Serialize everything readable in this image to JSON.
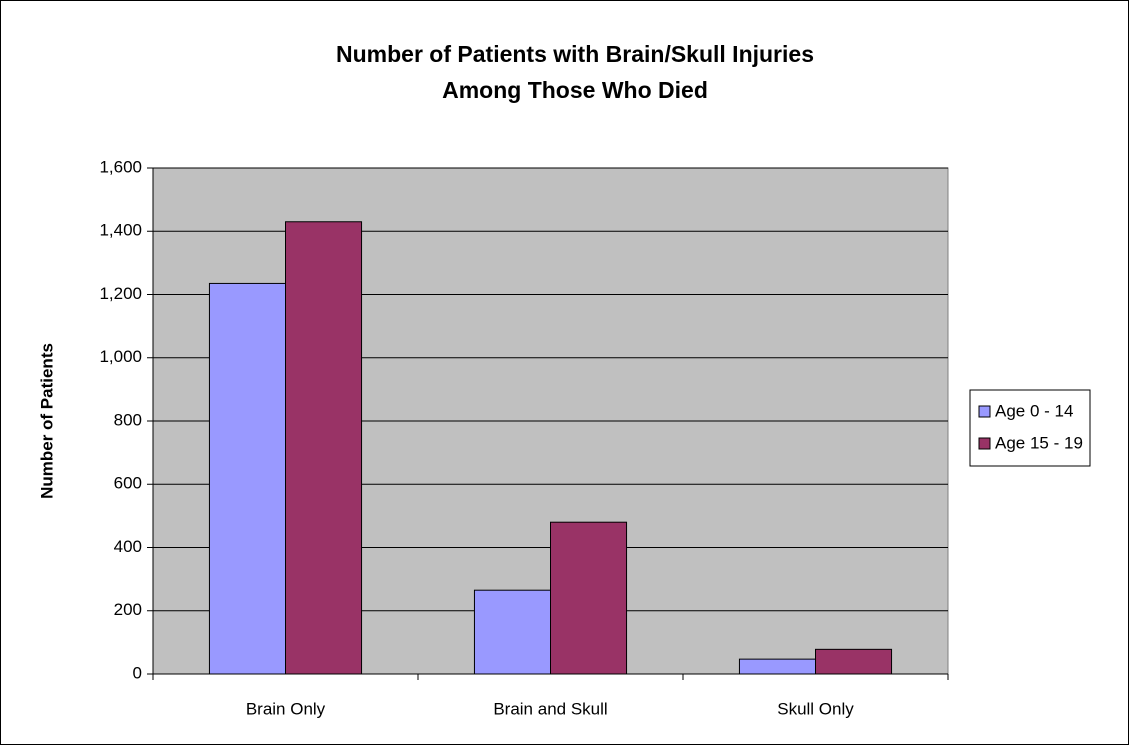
{
  "chart_data": {
    "type": "bar",
    "title": [
      "Number of Patients with Brain/Skull Injuries",
      "Among Those Who Died"
    ],
    "y_label": "Number of  Patients",
    "categories": [
      "Brain Only",
      "Brain and Skull",
      "Skull Only"
    ],
    "series": [
      {
        "name": "Age 0 - 14",
        "color": "#9999ff",
        "values": [
          1235,
          265,
          47
        ]
      },
      {
        "name": "Age 15 - 19",
        "color": "#993366",
        "values": [
          1430,
          480,
          78
        ]
      }
    ],
    "ylim": [
      0,
      1600
    ],
    "yticks": [
      0,
      200,
      400,
      600,
      800,
      {
        "value": 1000,
        "label": "1,000"
      },
      {
        "value": 1200,
        "label": "1,200"
      },
      {
        "value": 1400,
        "label": "1,400"
      },
      {
        "value": 1600,
        "label": "1,600"
      }
    ],
    "grid": true,
    "legend": "right"
  }
}
